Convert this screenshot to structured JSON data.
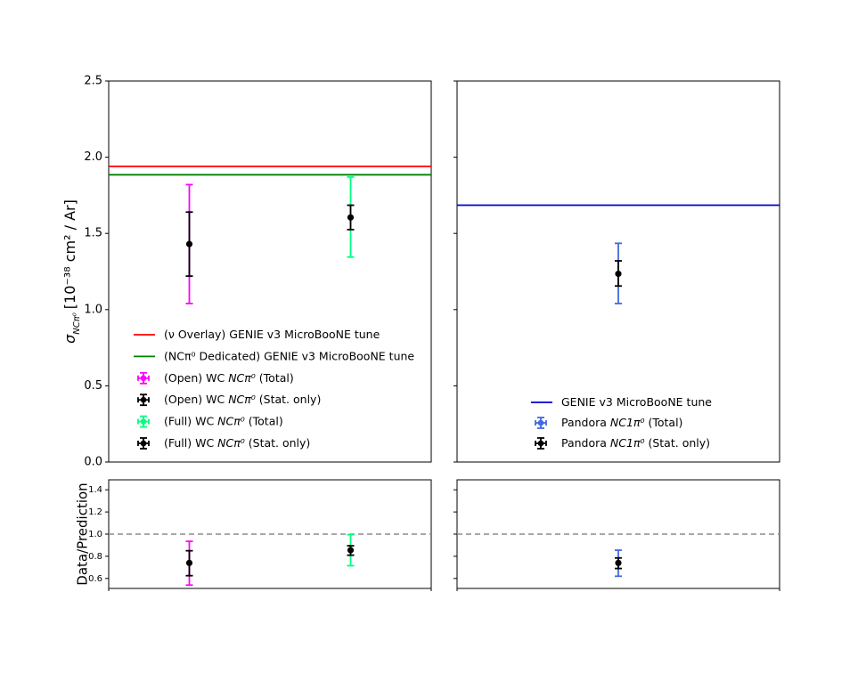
{
  "chart_data": [
    {
      "type": "scatter",
      "panel": "main-left",
      "ylabel_prefix": "σ",
      "ylabel_sub": "NCπ⁰",
      "ylabel_rest": "[10⁻³⁸ cm² / Ar]",
      "ylim": [
        0.0,
        2.5
      ],
      "yticks": [
        "0.0",
        "0.5",
        "1.0",
        "1.5",
        "2.0",
        "2.5"
      ],
      "grid": false,
      "legend_placement": "lower-left",
      "hlines": [
        {
          "name": "(ν Overlay) GENIE v3 MicroBooNE tune",
          "y": 1.94,
          "color": "#ff0000"
        },
        {
          "name": "(NCπ⁰ Dedicated) GENIE v3 MicroBooNE tune",
          "y": 1.885,
          "color": "#008000"
        }
      ],
      "points": [
        {
          "name": "(Open) WC NCπ⁰ (Total)",
          "x": 0.25,
          "y": 1.43,
          "yerr_low": 1.04,
          "yerr_high": 1.82,
          "color": "#ff00ff"
        },
        {
          "name": "(Open) WC NCπ⁰ (Stat. only)",
          "x": 0.25,
          "y": 1.43,
          "yerr_low": 1.22,
          "yerr_high": 1.64,
          "color": "#000000"
        },
        {
          "name": "(Full) WC NCπ⁰ (Total)",
          "x": 0.75,
          "y": 1.605,
          "yerr_low": 1.345,
          "yerr_high": 1.87,
          "color": "#00ff7f"
        },
        {
          "name": "(Full) WC NCπ⁰ (Stat. only)",
          "x": 0.75,
          "y": 1.605,
          "yerr_low": 1.525,
          "yerr_high": 1.685,
          "color": "#000000"
        }
      ]
    },
    {
      "type": "scatter",
      "panel": "main-right",
      "ylim": [
        0.0,
        2.5
      ],
      "grid": false,
      "legend_placement": "lower-center",
      "hlines": [
        {
          "name": "GENIE v3 MicroBooNE tune",
          "y": 1.685,
          "color": "#0000cd"
        }
      ],
      "points": [
        {
          "name": "Pandora NC1π⁰ (Total)",
          "x": 0.5,
          "y": 1.235,
          "yerr_low": 1.04,
          "yerr_high": 1.435,
          "color": "#4169e1"
        },
        {
          "name": "Pandora NC1π⁰ (Stat. only)",
          "x": 0.5,
          "y": 1.235,
          "yerr_low": 1.155,
          "yerr_high": 1.32,
          "color": "#000000"
        }
      ]
    },
    {
      "type": "scatter",
      "panel": "ratio-left",
      "ylabel": "Data/Prediction",
      "ylim": [
        0.51,
        1.49
      ],
      "yticks": [
        "0.6",
        "0.8",
        "1.0",
        "1.2",
        "1.4"
      ],
      "reference_line": 1.0,
      "points": [
        {
          "x": 0.25,
          "y": 0.74,
          "yerr_low": 0.54,
          "yerr_high": 0.935,
          "color": "#ff00ff"
        },
        {
          "x": 0.25,
          "y": 0.74,
          "yerr_low": 0.625,
          "yerr_high": 0.85,
          "color": "#000000"
        },
        {
          "x": 0.75,
          "y": 0.855,
          "yerr_low": 0.715,
          "yerr_high": 0.995,
          "color": "#00ff7f"
        },
        {
          "x": 0.75,
          "y": 0.855,
          "yerr_low": 0.81,
          "yerr_high": 0.895,
          "color": "#000000"
        }
      ]
    },
    {
      "type": "scatter",
      "panel": "ratio-right",
      "ylim": [
        0.51,
        1.49
      ],
      "reference_line": 1.0,
      "points": [
        {
          "x": 0.5,
          "y": 0.74,
          "yerr_low": 0.62,
          "yerr_high": 0.855,
          "color": "#4169e1"
        },
        {
          "x": 0.5,
          "y": 0.74,
          "yerr_low": 0.69,
          "yerr_high": 0.785,
          "color": "#000000"
        }
      ]
    }
  ]
}
